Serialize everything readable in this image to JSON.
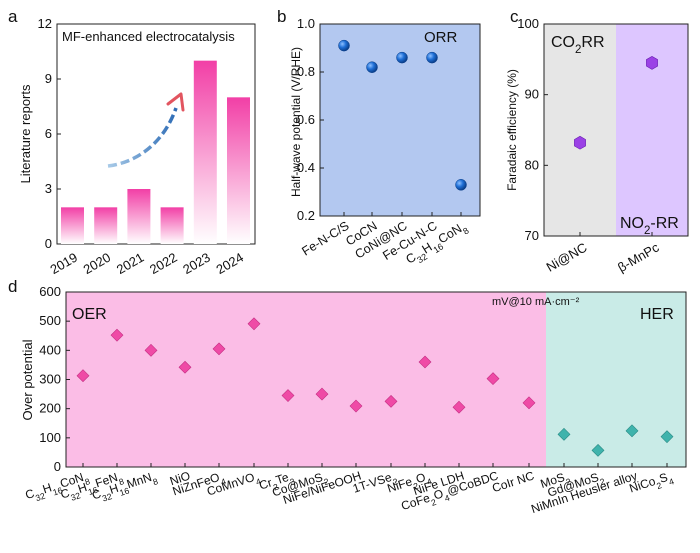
{
  "colors": {
    "bar_top": "#f23fa6",
    "b_bg": "#b3c8f0",
    "b_marker": "#1f6fd6",
    "c_left_bg": "#e6e6e6",
    "c_right_bg": "#ddc6ff",
    "c_marker": "#9b41e6",
    "d_oer_bg": "#fbbde6",
    "d_her_bg": "#c9ebe7",
    "d_oer_marker": "#ef4aa6",
    "d_her_marker": "#3fb3ac",
    "arrow_light": "#a9cbe8",
    "arrow_dark": "#2f6db6",
    "arrow_head": "#e25560"
  },
  "chart_data": [
    {
      "panel_label": "a",
      "type": "bar",
      "title": "MF-enhanced electrocatalysis",
      "ylabel": "Literature reports",
      "xlabel": "",
      "categories": [
        "2019",
        "2020",
        "2021",
        "2022",
        "2023",
        "2024"
      ],
      "values": [
        2,
        2,
        3,
        2,
        10,
        8
      ],
      "ylim": [
        0,
        12
      ],
      "yticks": [
        0,
        3,
        6,
        9,
        12
      ],
      "annotations": [
        "trend-arrow"
      ]
    },
    {
      "panel_label": "b",
      "type": "scatter",
      "ylabel": "Half-wave potential (V/RHE)",
      "region_label": "ORR",
      "categories": [
        "Fe-N-C/S",
        "CoCN",
        "CoNi@NC",
        "Fe-Cu-N-C",
        "C32H16CoN8"
      ],
      "values": [
        0.91,
        0.82,
        0.86,
        0.86,
        0.33
      ],
      "ylim": [
        0.2,
        1.0
      ],
      "yticks": [
        "0.2",
        "0.4",
        "0.6",
        "0.8",
        "1.0"
      ]
    },
    {
      "panel_label": "c",
      "type": "scatter",
      "ylabel": "Faradaic efficiency (%)",
      "region_labels": [
        "CO2RR",
        "NO2-RR"
      ],
      "categories": [
        "Ni@NC",
        "β-MnPc"
      ],
      "values": [
        83.2,
        94.5
      ],
      "ylim": [
        70,
        100
      ],
      "yticks": [
        70,
        80,
        90,
        100
      ]
    },
    {
      "panel_label": "d",
      "type": "scatter",
      "ylabel": "Over potential",
      "unit_label": "mV@10 mA·cm⁻²",
      "region_labels": [
        "OER",
        "HER"
      ],
      "ylim": [
        0,
        600
      ],
      "yticks": [
        0,
        100,
        200,
        300,
        400,
        500,
        600
      ],
      "series": [
        {
          "name": "OER",
          "categories": [
            "C32H16CoN8",
            "C32H16FeN8",
            "C32H16MnN8",
            "NiO",
            "NiZnFeO4",
            "CoMnVO4",
            "Cr2Te3",
            "Co@MoS2",
            "NiFe/NiFeOOH",
            "1T-VSe2",
            "NiFe2O4",
            "NiFe LDH",
            "CoFe2O4@CoBDC",
            "CoIr NC"
          ],
          "values": [
            313,
            452,
            400,
            342,
            405,
            491,
            245,
            250,
            209,
            225,
            360,
            205,
            303,
            220
          ]
        },
        {
          "name": "HER",
          "categories": [
            "MoS2",
            "Gd@MoS2",
            "NiMnIn Heusler alloy",
            "NiCo2S4"
          ],
          "values": [
            112,
            57,
            124,
            104
          ]
        }
      ]
    }
  ]
}
